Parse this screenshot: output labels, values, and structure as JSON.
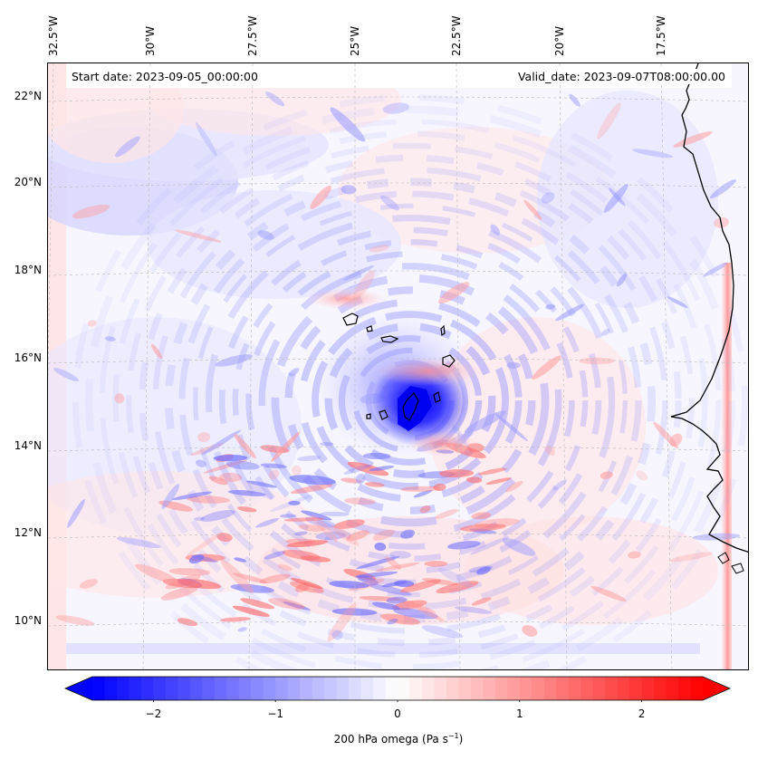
{
  "header": {
    "start_date": "Start date: 2023-09-05_00:00:00",
    "valid_date": "Valid_date: 2023-09-07T08:00:00.00"
  },
  "axes": {
    "lon_labels": [
      "32.5°W",
      "30°W",
      "27.5°W",
      "25°W",
      "22.5°W",
      "20°W",
      "17.5°W"
    ],
    "lat_labels": [
      "22°N",
      "20°N",
      "18°N",
      "16°N",
      "14°N",
      "12°N",
      "10°N"
    ]
  },
  "colorbar": {
    "ticks": [
      "−2",
      "−1",
      "0",
      "1",
      "2"
    ],
    "label": "200 hPa omega (Pa s",
    "label_exp": "−1",
    "label_end": ")",
    "range": [
      -2.5,
      2.5
    ],
    "cmap": "bwr",
    "extend": "both"
  },
  "map": {
    "field": "200 hPa omega",
    "units": "Pa s−1",
    "projection": "lambert",
    "gridlines": true,
    "feature": "Cabo Verde islands and West African coastline",
    "center_min_value": -2.5
  }
}
